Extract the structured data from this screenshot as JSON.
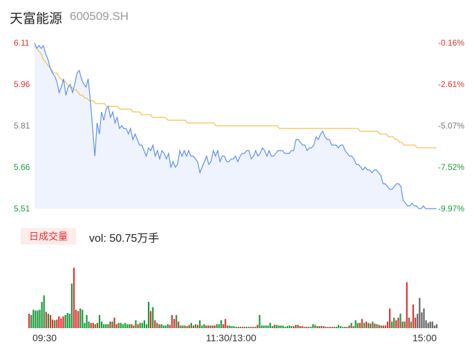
{
  "header": {
    "name": "天富能源",
    "code": "600509.SH"
  },
  "volume": {
    "tag": "日成交量",
    "label": "vol: 50.75万手"
  },
  "colors": {
    "up": "#e03030",
    "down": "#1a9b3a",
    "flat": "#666666",
    "price": "#5b8ff0",
    "avg": "#f2c14e",
    "fill": "#eef3fd"
  },
  "chart_data": {
    "type": "line",
    "title": "",
    "ylim": [
      5.51,
      6.11
    ],
    "y_ticks_left": [
      "6.11",
      "5.96",
      "5.81",
      "5.66",
      "5.51"
    ],
    "y_ticks_right": [
      "-0.16%",
      "-2.61%",
      "-5.07%",
      "-7.52%",
      "-9.97%"
    ],
    "x_ticks": [
      "09:30",
      "11:30/13:00",
      "15:00"
    ],
    "series": [
      {
        "role": "price",
        "values": [
          6.11,
          6.09,
          6.1,
          6.09,
          6.1,
          6.07,
          6.05,
          6.02,
          6.0,
          5.99,
          5.97,
          5.93,
          5.95,
          5.98,
          5.92,
          5.95,
          5.96,
          5.93,
          5.96,
          6.0,
          6.01,
          5.98,
          5.96,
          5.95,
          5.98,
          5.9,
          5.8,
          5.7,
          5.82,
          5.78,
          5.86,
          5.83,
          5.87,
          5.88,
          5.84,
          5.86,
          5.82,
          5.84,
          5.8,
          5.81,
          5.8,
          5.8,
          5.78,
          5.8,
          5.76,
          5.78,
          5.76,
          5.74,
          5.74,
          5.72,
          5.7,
          5.73,
          5.72,
          5.74,
          5.7,
          5.72,
          5.69,
          5.72,
          5.71,
          5.69,
          5.71,
          5.66,
          5.68,
          5.66,
          5.67,
          5.72,
          5.7,
          5.72,
          5.7,
          5.72,
          5.7,
          5.7,
          5.69,
          5.68,
          5.64,
          5.66,
          5.68,
          5.7,
          5.67,
          5.68,
          5.72,
          5.7,
          5.72,
          5.68,
          5.7,
          5.7,
          5.68,
          5.68,
          5.69,
          5.69,
          5.7,
          5.68,
          5.7,
          5.71,
          5.71,
          5.72,
          5.72,
          5.69,
          5.7,
          5.72,
          5.7,
          5.71,
          5.73,
          5.72,
          5.7,
          5.72,
          5.7,
          5.7,
          5.71,
          5.72,
          5.72,
          5.72,
          5.71,
          5.71,
          5.71,
          5.72,
          5.72,
          5.76,
          5.76,
          5.75,
          5.74,
          5.74,
          5.72,
          5.73,
          5.73,
          5.74,
          5.77,
          5.76,
          5.78,
          5.79,
          5.77,
          5.76,
          5.76,
          5.74,
          5.74,
          5.74,
          5.73,
          5.74,
          5.74,
          5.72,
          5.71,
          5.7,
          5.7,
          5.69,
          5.67,
          5.67,
          5.66,
          5.65,
          5.66,
          5.65,
          5.65,
          5.64,
          5.65,
          5.65,
          5.64,
          5.63,
          5.6,
          5.6,
          5.59,
          5.58,
          5.58,
          5.59,
          5.6,
          5.6,
          5.59,
          5.54,
          5.53,
          5.52,
          5.52,
          5.53,
          5.52,
          5.52,
          5.51,
          5.51,
          5.52,
          5.51,
          5.51,
          5.51,
          5.51,
          5.51,
          5.51
        ]
      },
      {
        "role": "average",
        "values": [
          6.1,
          6.09,
          6.08,
          6.07,
          6.05,
          6.04,
          6.03,
          6.02,
          6.01,
          6.0,
          6.0,
          5.99,
          5.98,
          5.97,
          5.97,
          5.96,
          5.95,
          5.95,
          5.94,
          5.94,
          5.93,
          5.92,
          5.92,
          5.91,
          5.91,
          5.9,
          5.9,
          5.9,
          5.89,
          5.89,
          5.89,
          5.89,
          5.89,
          5.88,
          5.88,
          5.88,
          5.88,
          5.88,
          5.88,
          5.87,
          5.87,
          5.87,
          5.87,
          5.87,
          5.87,
          5.86,
          5.86,
          5.86,
          5.86,
          5.85,
          5.85,
          5.85,
          5.85,
          5.85,
          5.84,
          5.84,
          5.84,
          5.84,
          5.84,
          5.84,
          5.84,
          5.83,
          5.83,
          5.83,
          5.83,
          5.83,
          5.83,
          5.83,
          5.83,
          5.83,
          5.82,
          5.82,
          5.82,
          5.82,
          5.82,
          5.82,
          5.82,
          5.82,
          5.82,
          5.82,
          5.82,
          5.82,
          5.82,
          5.81,
          5.81,
          5.81,
          5.81,
          5.81,
          5.81,
          5.81,
          5.81,
          5.81,
          5.81,
          5.81,
          5.81,
          5.81,
          5.81,
          5.81,
          5.81,
          5.81,
          5.81,
          5.81,
          5.81,
          5.81,
          5.81,
          5.81,
          5.81,
          5.81,
          5.81,
          5.81,
          5.81,
          5.81,
          5.8,
          5.8,
          5.8,
          5.8,
          5.8,
          5.8,
          5.8,
          5.8,
          5.8,
          5.8,
          5.8,
          5.8,
          5.8,
          5.8,
          5.8,
          5.8,
          5.8,
          5.8,
          5.8,
          5.8,
          5.8,
          5.8,
          5.8,
          5.8,
          5.8,
          5.8,
          5.8,
          5.8,
          5.8,
          5.8,
          5.8,
          5.8,
          5.8,
          5.8,
          5.8,
          5.8,
          5.8,
          5.79,
          5.79,
          5.79,
          5.79,
          5.79,
          5.79,
          5.79,
          5.79,
          5.79,
          5.78,
          5.78,
          5.78,
          5.78,
          5.77,
          5.77,
          5.77,
          5.76,
          5.76,
          5.75,
          5.75,
          5.74,
          5.74,
          5.74,
          5.74,
          5.74,
          5.74,
          5.73,
          5.73,
          5.73,
          5.73,
          5.73,
          5.73,
          5.73,
          5.73,
          5.73,
          5.73
        ]
      },
      {
        "role": "volume",
        "colors": [
          "u",
          "d",
          "d",
          "d",
          "d",
          "d",
          "d",
          "d",
          "u",
          "d",
          "u",
          "u",
          "d",
          "u",
          "u",
          "u",
          "u",
          "d",
          "d",
          "d",
          "d",
          "u",
          "u",
          "u",
          "d",
          "d",
          "d",
          "d",
          "d",
          "u",
          "u",
          "d",
          "u",
          "d",
          "d",
          "d",
          "d",
          "d",
          "u",
          "d",
          "u",
          "u",
          "d",
          "d",
          "d",
          "d",
          "d",
          "d",
          "u",
          "u",
          "d",
          "u",
          "d",
          "d",
          "d",
          "d",
          "d",
          "u",
          "d",
          "u",
          "d",
          "u",
          "d",
          "d",
          "d",
          "d",
          "u",
          "u",
          "u",
          "d",
          "u",
          "d",
          "d",
          "u",
          "d",
          "u",
          "d",
          "u",
          "d",
          "u",
          "d",
          "d",
          "d",
          "u",
          "u",
          "d",
          "u",
          "u",
          "d",
          "d",
          "d",
          "u",
          "u",
          "d",
          "d",
          "d",
          "d",
          "d",
          "u",
          "d",
          "u",
          "u",
          "d",
          "d",
          "u",
          "d",
          "u",
          "u",
          "d",
          "d",
          "d",
          "d",
          "d",
          "d",
          "d",
          "u",
          "d",
          "d",
          "d",
          "d",
          "d",
          "d",
          "d",
          "d",
          "u",
          "u",
          "d",
          "u",
          "u",
          "d",
          "u",
          "u",
          "d",
          "d",
          "d",
          "u",
          "d",
          "u",
          "u",
          "u",
          "d",
          "u",
          "d",
          "u",
          "d",
          "d",
          "d",
          "d",
          "u",
          "d",
          "u",
          "d",
          "u",
          "d",
          "d",
          "u",
          "u",
          "d",
          "u",
          "d",
          "u",
          "d",
          "u",
          "d",
          "u",
          "d",
          "u",
          "u",
          "u",
          "u",
          "d",
          "d",
          "u",
          "u",
          "d",
          "u",
          "d",
          "u",
          "u",
          "d",
          "u",
          "u"
        ],
        "values": [
          0.22,
          0.2,
          0.28,
          0.27,
          0.27,
          0.28,
          0.4,
          0.5,
          0.25,
          0.22,
          0.2,
          0.13,
          0.12,
          0.13,
          0.18,
          0.15,
          0.18,
          0.2,
          0.23,
          0.22,
          0.68,
          0.92,
          0.28,
          0.26,
          0.3,
          0.28,
          0.08,
          0.2,
          0.1,
          0.08,
          0.08,
          0.06,
          0.08,
          0.2,
          0.1,
          0.06,
          0.06,
          0.06,
          0.1,
          0.1,
          0.16,
          0.06,
          0.08,
          0.08,
          0.06,
          0.08,
          0.06,
          0.06,
          0.06,
          0.04,
          0.12,
          0.06,
          0.08,
          0.08,
          0.12,
          0.06,
          0.4,
          0.26,
          0.32,
          0.12,
          0.08,
          0.06,
          0.06,
          0.04,
          0.04,
          0.06,
          0.05,
          0.2,
          0.14,
          0.2,
          0.1,
          0.04,
          0.04,
          0.04,
          0.03,
          0.05,
          0.08,
          0.04,
          0.06,
          0.05,
          0.12,
          0.04,
          0.06,
          0.04,
          0.04,
          0.04,
          0.04,
          0.04,
          0.06,
          0.06,
          0.12,
          0.06,
          0.14,
          0.04,
          0.04,
          0.03,
          0.03,
          0.02,
          0.02,
          0.02,
          0.02,
          0.02,
          0.02,
          0.02,
          0.02,
          0.02,
          0.02,
          0.05,
          0.2,
          0.04,
          0.04,
          0.04,
          0.04,
          0.08,
          0.03,
          0.05,
          0.05,
          0.04,
          0.04,
          0.04,
          0.02,
          0.03,
          0.04,
          0.03,
          0.03,
          0.05,
          0.05,
          0.03,
          0.03,
          0.02,
          0.02,
          0.02,
          0.02,
          0.06,
          0.05,
          0.03,
          0.03,
          0.03,
          0.03,
          0.02,
          0.02,
          0.02,
          0.02,
          0.02,
          0.02,
          0.05,
          0.03,
          0.02,
          0.02,
          0.02,
          0.04,
          0.08,
          0.03,
          0.12,
          0.08,
          0.08,
          0.14,
          0.08,
          0.1,
          0.08,
          0.07,
          0.1,
          0.07,
          0.06,
          0.05,
          0.04,
          0.04,
          0.04,
          0.1,
          0.3,
          0.1,
          0.16,
          0.12,
          0.16,
          0.22,
          0.1,
          0.1,
          0.7,
          0.16,
          0.1,
          0.36,
          0.16,
          0.22,
          0.46,
          0.24,
          0.3,
          0.12,
          0.08,
          0.1,
          0.1,
          0.04,
          0.06
        ]
      }
    ]
  }
}
